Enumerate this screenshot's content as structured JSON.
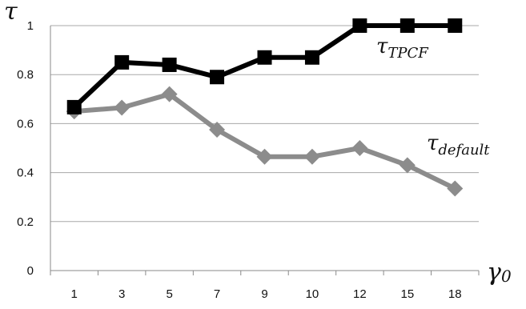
{
  "chart_data": {
    "type": "line",
    "categories": [
      "1",
      "3",
      "5",
      "7",
      "9",
      "10",
      "12",
      "15",
      "18"
    ],
    "series": [
      {
        "name": "τTPCF",
        "values": [
          0.667,
          0.85,
          0.84,
          0.79,
          0.87,
          0.87,
          1.0,
          1.0,
          1.0
        ],
        "color": "#000000",
        "marker": "square"
      },
      {
        "name": "τdefault",
        "values": [
          0.65,
          0.665,
          0.72,
          0.575,
          0.465,
          0.465,
          0.5,
          0.43,
          0.335
        ],
        "color": "#8c8c8c",
        "marker": "diamond"
      }
    ],
    "ylabel": "τ",
    "xlabel": "γ0",
    "ylim": [
      0,
      1
    ],
    "yticks": [
      "0",
      "0.2",
      "0.4",
      "0.6",
      "0.8",
      "1"
    ],
    "grid": true,
    "legend": "inline labels"
  },
  "labels": {
    "y_axis": "τ",
    "x_axis_main": "γ",
    "x_axis_sub": "0",
    "series1_main": "τ",
    "series1_sub": "TPCF",
    "series2_main": "τ",
    "series2_sub": "default"
  }
}
